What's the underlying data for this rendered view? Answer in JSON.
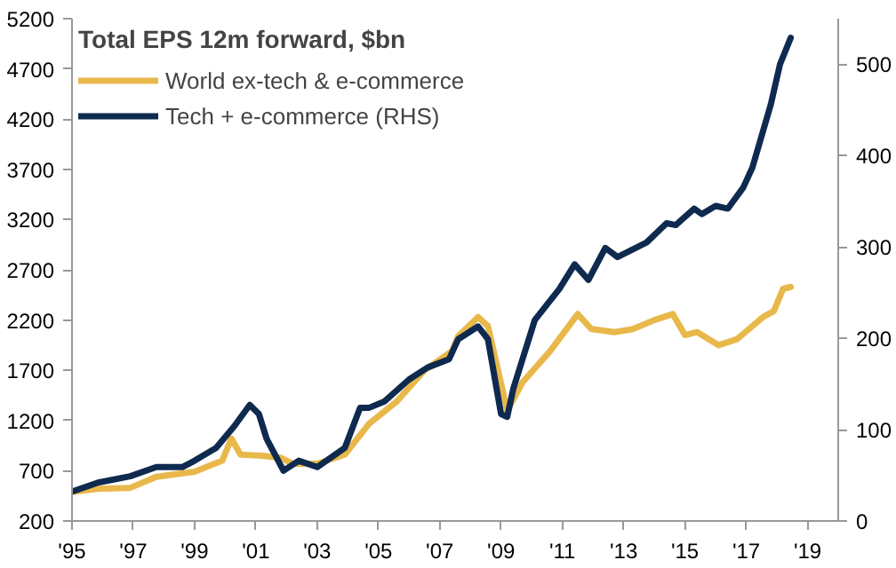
{
  "chart_data": {
    "type": "line",
    "title": "Total EPS 12m forward, $bn",
    "legend": "top left",
    "grid": false,
    "xlim": [
      1995,
      2020
    ],
    "xticks": [
      {
        "value": 1995,
        "label": "'95"
      },
      {
        "value": 1997,
        "label": "'97"
      },
      {
        "value": 1999,
        "label": "'99"
      },
      {
        "value": 2001,
        "label": "'01"
      },
      {
        "value": 2003,
        "label": "'03"
      },
      {
        "value": 2005,
        "label": "'05"
      },
      {
        "value": 2007,
        "label": "'07"
      },
      {
        "value": 2009,
        "label": "'09"
      },
      {
        "value": 2011,
        "label": "'11"
      },
      {
        "value": 2013,
        "label": "'13"
      },
      {
        "value": 2015,
        "label": "'15"
      },
      {
        "value": 2017,
        "label": "'17"
      },
      {
        "value": 2019,
        "label": "'19"
      }
    ],
    "ylim": [
      200,
      5200
    ],
    "yticks": [
      200,
      700,
      1200,
      1700,
      2200,
      2700,
      3200,
      3700,
      4200,
      4700,
      5200
    ],
    "y2lim": [
      0,
      550
    ],
    "y2ticks": [
      0,
      100,
      200,
      300,
      400,
      500
    ],
    "series": [
      {
        "name": "World ex-tech & e-commerce",
        "color": "#e8b84b",
        "x": [
          1995,
          1995.85,
          1996.9,
          1997.75,
          1999.0,
          1999.9,
          2000.2,
          2000.5,
          2001.2,
          2001.8,
          2002.2,
          2003.0,
          2003.9,
          2004.7,
          2005.6,
          2006.5,
          2007.4,
          2007.6,
          2008.25,
          2008.57,
          2009.2,
          2009.7,
          2010.6,
          2011.5,
          2011.95,
          2012.7,
          2013.3,
          2014.0,
          2014.6,
          2015.0,
          2015.4,
          2016.1,
          2016.7,
          2017.55,
          2017.9,
          2018.2,
          2018.45
        ],
        "values": [
          490,
          520,
          530,
          640,
          690,
          800,
          1020,
          860,
          850,
          830,
          770,
          770,
          860,
          1170,
          1390,
          1700,
          1890,
          2040,
          2230,
          2140,
          1300,
          1580,
          1890,
          2260,
          2110,
          2080,
          2110,
          2200,
          2260,
          2050,
          2080,
          1950,
          2010,
          2230,
          2290,
          2510,
          2530
        ]
      },
      {
        "name": "Tech + e-commerce (RHS)",
        "color": "#0f2a4f",
        "axis": "y2",
        "x": [
          1995,
          1995.85,
          1996.9,
          1997.75,
          1998.6,
          1999.0,
          1999.7,
          2000.3,
          2000.8,
          2001.1,
          2001.35,
          2001.9,
          2002.4,
          2003.0,
          2003.9,
          2004.4,
          2004.7,
          2005.2,
          2006.0,
          2006.6,
          2007.3,
          2007.6,
          2008.25,
          2008.57,
          2009.0,
          2009.2,
          2009.4,
          2010.1,
          2010.9,
          2011.4,
          2011.85,
          2012.4,
          2012.8,
          2013.75,
          2014.4,
          2014.7,
          2015.3,
          2015.55,
          2016.0,
          2016.4,
          2016.9,
          2017.2,
          2017.8,
          2018.1,
          2018.45
        ],
        "values": [
          32,
          42,
          49,
          59,
          59,
          66,
          80,
          104,
          127,
          117,
          90,
          55,
          66,
          59,
          80,
          124,
          124,
          131,
          155,
          168,
          177,
          199,
          213,
          199,
          117,
          114,
          145,
          220,
          254,
          281,
          264,
          299,
          289,
          305,
          326,
          324,
          342,
          336,
          345,
          342,
          365,
          387,
          456,
          500,
          529
        ]
      }
    ]
  }
}
